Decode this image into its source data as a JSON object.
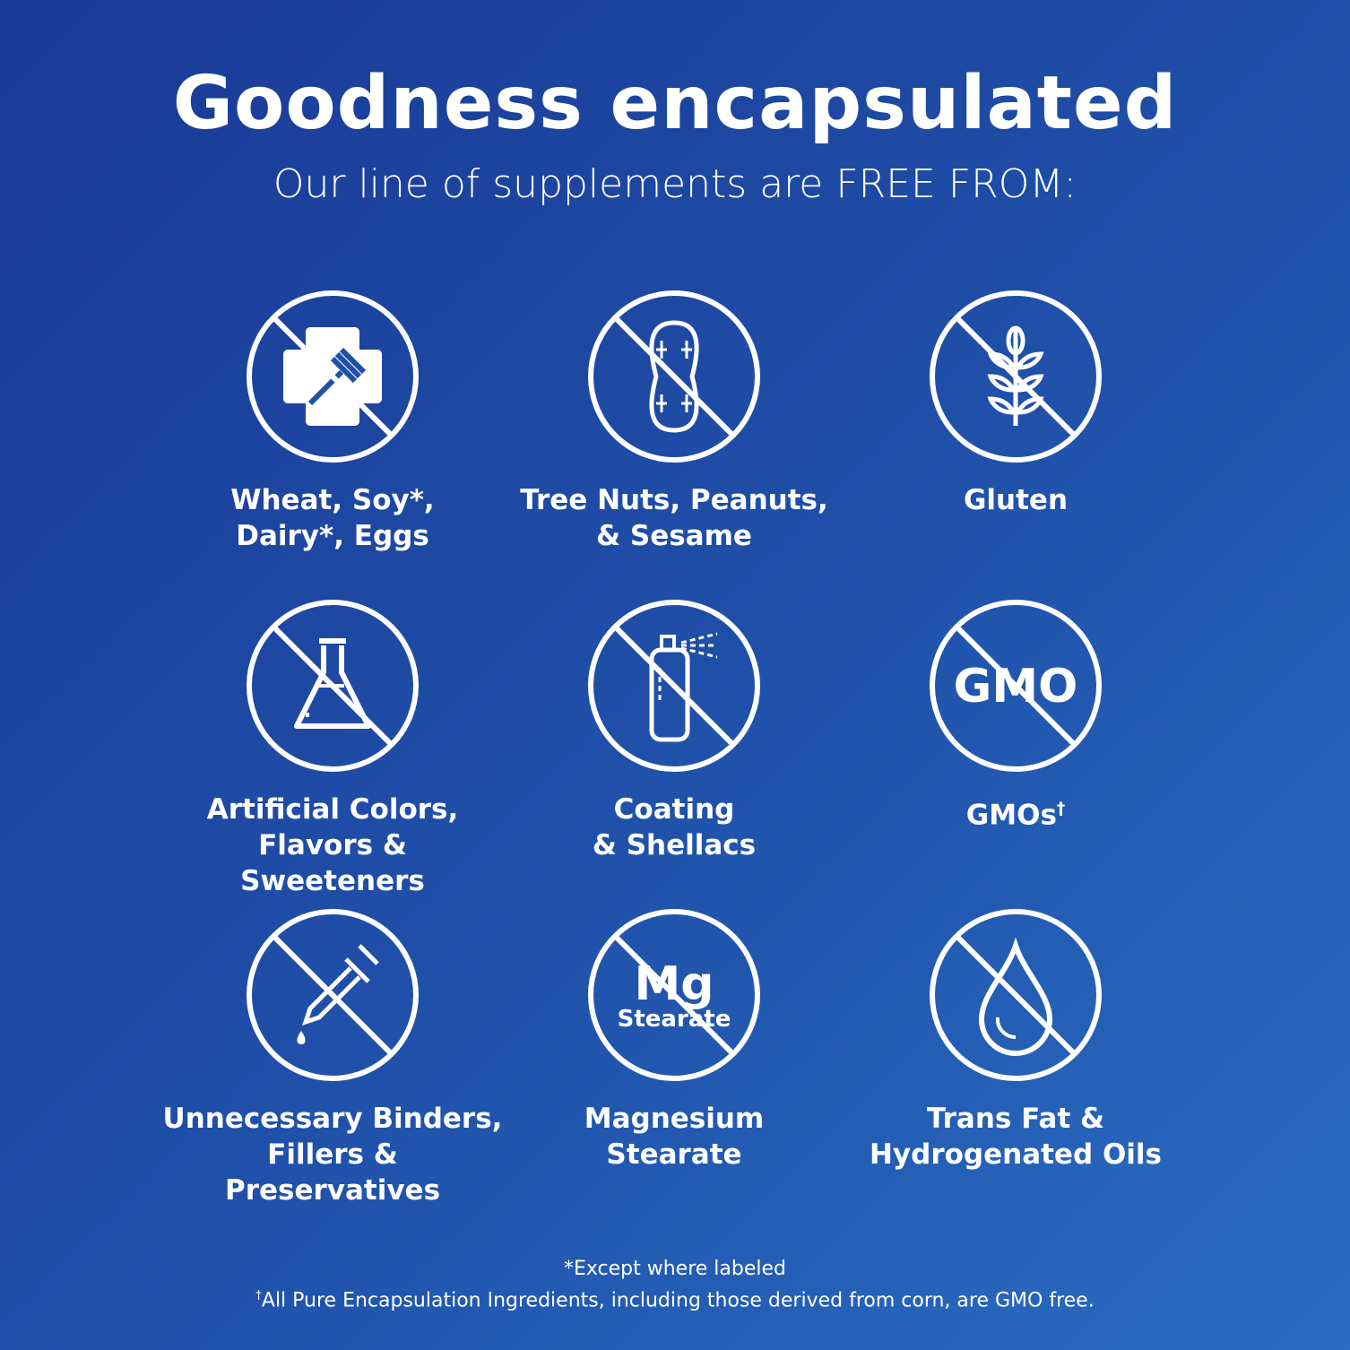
{
  "header": {
    "title": "Goodness encapsulated",
    "subtitle": "Our line of supplements are FREE FROM:"
  },
  "items": [
    {
      "icon": "no-allergen-icon",
      "label": "Wheat, Soy*,\nDairy*, Eggs"
    },
    {
      "icon": "no-peanut-icon",
      "label": "Tree Nuts, Peanuts,\n& Sesame"
    },
    {
      "icon": "no-wheat-icon",
      "label": "Gluten"
    },
    {
      "icon": "no-flask-icon",
      "label": "Artificial Colors,\nFlavors & Sweeteners"
    },
    {
      "icon": "no-spray-icon",
      "label": "Coating\n& Shellacs"
    },
    {
      "icon": "no-gmo-icon",
      "label": "GMOs",
      "sup": "†",
      "icon_text": "GMO"
    },
    {
      "icon": "no-dropper-icon",
      "label": "Unnecessary Binders,\nFillers & Preservatives"
    },
    {
      "icon": "no-mg-stearate-icon",
      "label": "Magnesium\nStearate",
      "icon_text": "Mg",
      "icon_subtext": "Stearate"
    },
    {
      "icon": "no-oil-drop-icon",
      "label": "Trans Fat &\nHydrogenated Oils"
    }
  ],
  "footer": {
    "note1": "*Except where labeled",
    "note2_mark": "†",
    "note2": "All Pure Encapsulation Ingredients, including those derived from corn, are GMO free."
  }
}
